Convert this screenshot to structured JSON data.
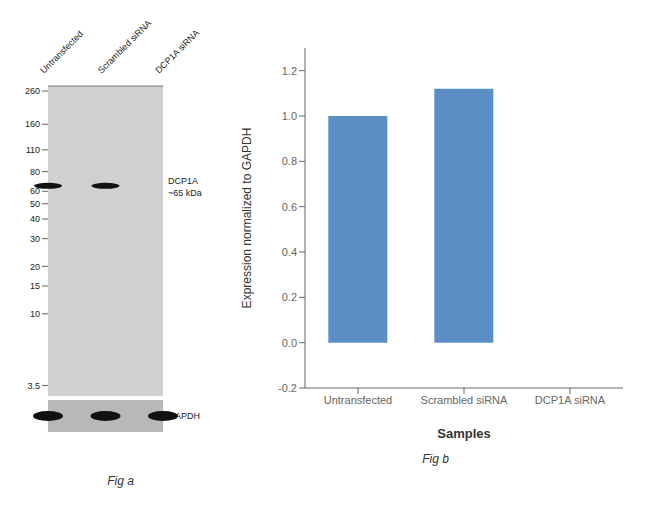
{
  "chart_data": [
    {
      "type": "blot",
      "title": "Fig a",
      "categories": [
        "Untransfected",
        "Scrambled siRNA",
        "DCP1A siRNA"
      ],
      "series": [
        {
          "name": "DCP1A",
          "color": "#111111",
          "values": [
            65,
            65,
            null
          ]
        }
      ],
      "annotations": [
        "~65 kDa",
        "GAPDH"
      ],
      "log": "y",
      "ylim": [
        3.0,
        280
      ],
      "yticks": [
        260,
        160,
        110,
        80,
        60,
        50,
        40,
        30,
        20,
        15,
        10,
        3.5
      ]
    },
    {
      "type": "bar",
      "title": "Fig b",
      "categories": [
        "Untransfected",
        "Scrambled siRNA",
        "DCP1A siRNA"
      ],
      "values": [
        1.0,
        1.12,
        0.0
      ],
      "color": "#5b8ec4",
      "ylim": [
        -0.2,
        1.3
      ],
      "yticks": [
        -0.2,
        {
          "value": 0,
          "label": "0.0"
        },
        0.2,
        0.4,
        0.6,
        0.8,
        {
          "value": 1.0,
          "label": "1.0"
        },
        1.2
      ],
      "ylabel": "Expression normalized to GAPDH",
      "xlabel": "Samples",
      "grid": false
    }
  ]
}
